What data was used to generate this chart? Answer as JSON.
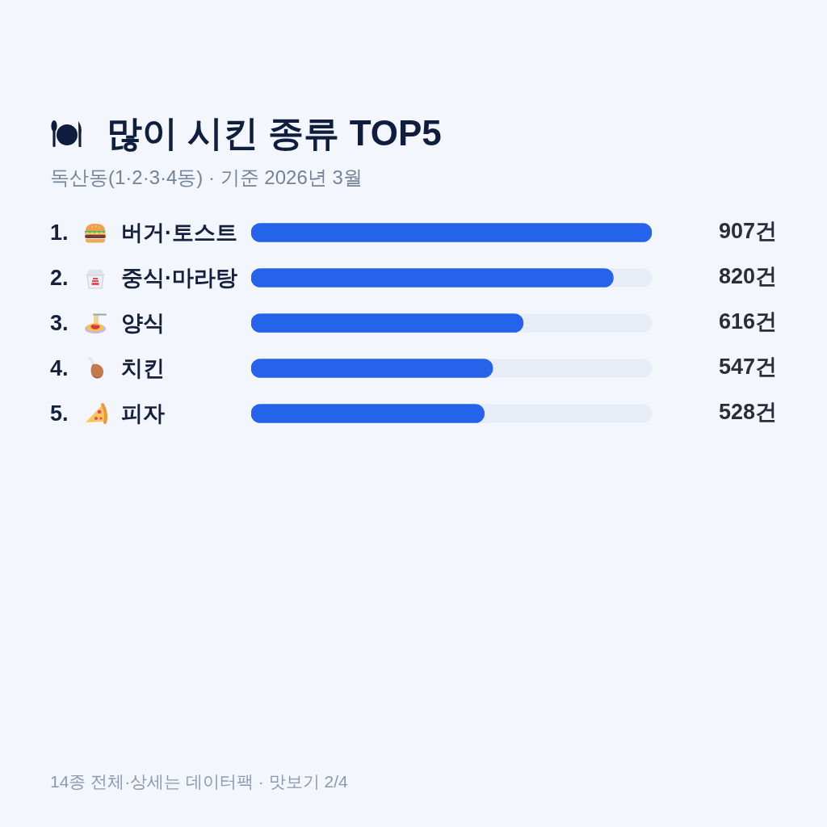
{
  "chart_data": {
    "type": "bar",
    "orientation": "horizontal",
    "title": "많이 시킨 종류 TOP5",
    "subtitle": "독산동(1·2·3·4동) · 기준 2026년 3월",
    "categories": [
      "1. 버거·토스트",
      "2. 중식·마라탕",
      "3. 양식",
      "4. 치킨",
      "5. 피자"
    ],
    "values": [
      907,
      820,
      616,
      547,
      528
    ],
    "color": "#2563eb",
    "xlim": [
      0,
      907
    ],
    "tick_labels": "y",
    "value_labels": [
      "907건",
      "820건",
      "616건",
      "547건",
      "528건"
    ],
    "annotations": [
      "14종 전체·상세는 데이터팩 · 맛보기 2/4"
    ]
  }
}
